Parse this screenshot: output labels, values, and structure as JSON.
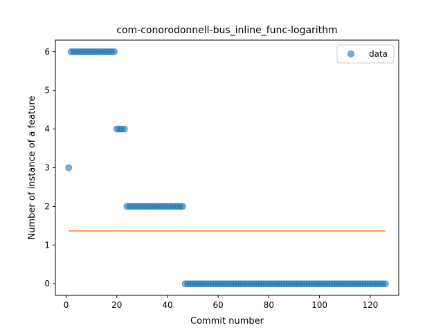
{
  "chart_data": {
    "type": "scatter",
    "title": "com-conorodonnell-bus_inline_func-logarithm",
    "xlabel": "Commit number",
    "ylabel": "Number of instance of a feature",
    "xlim": [
      -4.25,
      131.25
    ],
    "ylim": [
      -0.3,
      6.3
    ],
    "xticks": [
      0,
      20,
      40,
      60,
      80,
      100,
      120
    ],
    "yticks": [
      0,
      1,
      2,
      3,
      4,
      5,
      6
    ],
    "legend": {
      "placement": "top-right",
      "entries": [
        "data"
      ]
    },
    "grid": false,
    "series": [
      {
        "name": "data",
        "kind": "scatter",
        "color": "#1f77b4",
        "x": [
          1,
          2,
          3,
          4,
          5,
          6,
          7,
          8,
          9,
          10,
          11,
          12,
          13,
          14,
          15,
          16,
          17,
          18,
          19,
          20,
          21,
          22,
          23,
          24,
          25,
          26,
          27,
          28,
          29,
          30,
          31,
          32,
          33,
          34,
          35,
          36,
          37,
          38,
          39,
          40,
          41,
          42,
          43,
          44,
          45,
          46,
          47,
          48,
          49,
          50,
          51,
          52,
          53,
          54,
          55,
          56,
          57,
          58,
          59,
          60,
          61,
          62,
          63,
          64,
          65,
          66,
          67,
          68,
          69,
          70,
          71,
          72,
          73,
          74,
          75,
          76,
          77,
          78,
          79,
          80,
          81,
          82,
          83,
          84,
          85,
          86,
          87,
          88,
          89,
          90,
          91,
          92,
          93,
          94,
          95,
          96,
          97,
          98,
          99,
          100,
          101,
          102,
          103,
          104,
          105,
          106,
          107,
          108,
          109,
          110,
          111,
          112,
          113,
          114,
          115,
          116,
          117,
          118,
          119,
          120,
          121,
          122,
          123,
          124,
          125,
          126
        ],
        "y": [
          3,
          6,
          6,
          6,
          6,
          6,
          6,
          6,
          6,
          6,
          6,
          6,
          6,
          6,
          6,
          6,
          6,
          6,
          6,
          4,
          4,
          4,
          4,
          2,
          2,
          2,
          2,
          2,
          2,
          2,
          2,
          2,
          2,
          2,
          2,
          2,
          2,
          2,
          2,
          2,
          2,
          2,
          2,
          2,
          2,
          2,
          0,
          0,
          0,
          0,
          0,
          0,
          0,
          0,
          0,
          0,
          0,
          0,
          0,
          0,
          0,
          0,
          0,
          0,
          0,
          0,
          0,
          0,
          0,
          0,
          0,
          0,
          0,
          0,
          0,
          0,
          0,
          0,
          0,
          0,
          0,
          0,
          0,
          0,
          0,
          0,
          0,
          0,
          0,
          0,
          0,
          0,
          0,
          0,
          0,
          0,
          0,
          0,
          0,
          0,
          0,
          0,
          0,
          0,
          0,
          0,
          0,
          0,
          0,
          0,
          0,
          0,
          0,
          0,
          0,
          0,
          0,
          0,
          0,
          0,
          0,
          0,
          0,
          0,
          0,
          0
        ]
      },
      {
        "name": "",
        "kind": "line",
        "color": "#ff7f0e",
        "x": [
          1,
          126
        ],
        "y": [
          1.365,
          1.365
        ]
      }
    ]
  }
}
